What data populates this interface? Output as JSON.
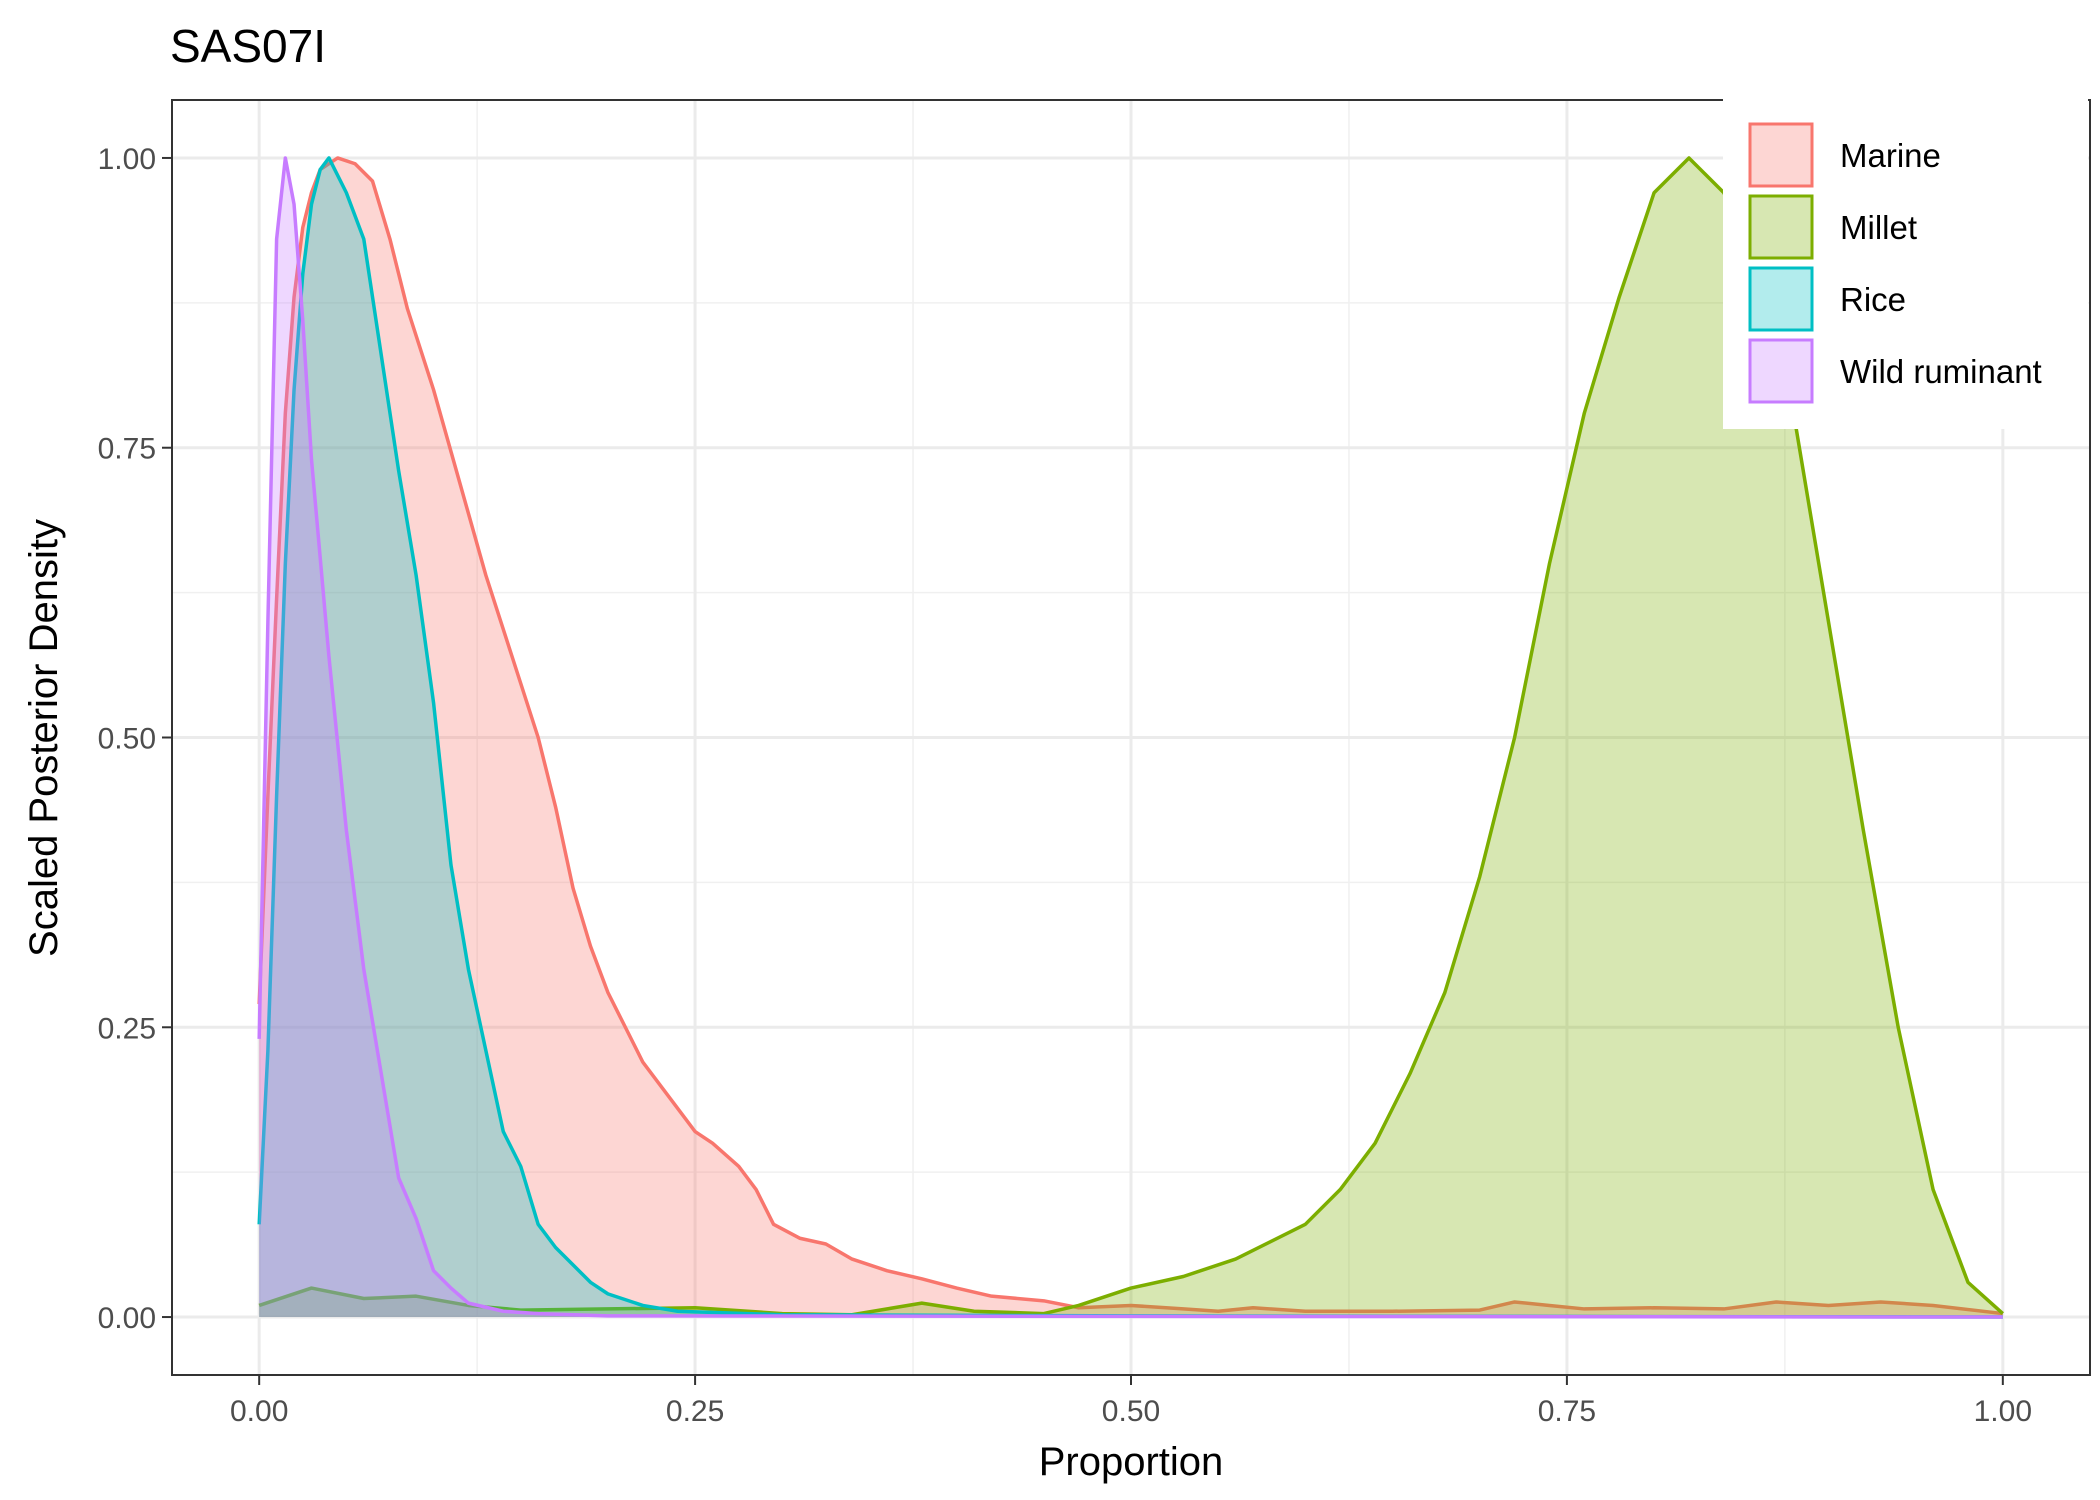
{
  "chart_data": {
    "type": "area",
    "title": "SAS07I",
    "xlabel": "Proportion",
    "ylabel": "Scaled Posterior Density",
    "xlim": [
      -0.05,
      1.05
    ],
    "ylim": [
      -0.05,
      1.05
    ],
    "x_ticks": [
      0,
      0.25,
      0.5,
      0.75,
      1
    ],
    "x_tick_labels": [
      "0.00",
      "0.25",
      "0.50",
      "0.75",
      "1.00"
    ],
    "y_ticks": [
      0,
      0.25,
      0.5,
      0.75,
      1
    ],
    "y_tick_labels": [
      "0.00",
      "0.25",
      "0.50",
      "0.75",
      "1.00"
    ],
    "grid": true,
    "legend_position": "top-right",
    "series": [
      {
        "name": "Marine",
        "color": "#F8766D",
        "points": [
          [
            0,
            0.27
          ],
          [
            0.005,
            0.45
          ],
          [
            0.01,
            0.62
          ],
          [
            0.015,
            0.78
          ],
          [
            0.02,
            0.88
          ],
          [
            0.025,
            0.94
          ],
          [
            0.03,
            0.97
          ],
          [
            0.035,
            0.99
          ],
          [
            0.045,
            1.0
          ],
          [
            0.055,
            0.995
          ],
          [
            0.065,
            0.98
          ],
          [
            0.075,
            0.93
          ],
          [
            0.085,
            0.87
          ],
          [
            0.1,
            0.8
          ],
          [
            0.115,
            0.72
          ],
          [
            0.13,
            0.64
          ],
          [
            0.145,
            0.57
          ],
          [
            0.16,
            0.5
          ],
          [
            0.17,
            0.44
          ],
          [
            0.18,
            0.37
          ],
          [
            0.19,
            0.32
          ],
          [
            0.2,
            0.28
          ],
          [
            0.21,
            0.25
          ],
          [
            0.22,
            0.22
          ],
          [
            0.235,
            0.19
          ],
          [
            0.25,
            0.16
          ],
          [
            0.26,
            0.15
          ],
          [
            0.275,
            0.13
          ],
          [
            0.285,
            0.11
          ],
          [
            0.295,
            0.08
          ],
          [
            0.31,
            0.068
          ],
          [
            0.325,
            0.063
          ],
          [
            0.34,
            0.05
          ],
          [
            0.36,
            0.04
          ],
          [
            0.38,
            0.033
          ],
          [
            0.4,
            0.025
          ],
          [
            0.42,
            0.018
          ],
          [
            0.45,
            0.014
          ],
          [
            0.47,
            0.008
          ],
          [
            0.5,
            0.01
          ],
          [
            0.53,
            0.007
          ],
          [
            0.55,
            0.005
          ],
          [
            0.57,
            0.008
          ],
          [
            0.6,
            0.005
          ],
          [
            0.65,
            0.005
          ],
          [
            0.7,
            0.006
          ],
          [
            0.72,
            0.013
          ],
          [
            0.74,
            0.01
          ],
          [
            0.76,
            0.007
          ],
          [
            0.8,
            0.008
          ],
          [
            0.84,
            0.007
          ],
          [
            0.87,
            0.013
          ],
          [
            0.9,
            0.01
          ],
          [
            0.93,
            0.013
          ],
          [
            0.96,
            0.01
          ],
          [
            1.0,
            0.003
          ]
        ]
      },
      {
        "name": "Millet",
        "color": "#7CAE00",
        "points": [
          [
            0,
            0.01
          ],
          [
            0.03,
            0.025
          ],
          [
            0.06,
            0.016
          ],
          [
            0.09,
            0.018
          ],
          [
            0.12,
            0.01
          ],
          [
            0.15,
            0.006
          ],
          [
            0.2,
            0.007
          ],
          [
            0.25,
            0.008
          ],
          [
            0.3,
            0.003
          ],
          [
            0.34,
            0.002
          ],
          [
            0.38,
            0.012
          ],
          [
            0.41,
            0.005
          ],
          [
            0.45,
            0.003
          ],
          [
            0.47,
            0.01
          ],
          [
            0.5,
            0.025
          ],
          [
            0.53,
            0.035
          ],
          [
            0.56,
            0.05
          ],
          [
            0.6,
            0.08
          ],
          [
            0.62,
            0.11
          ],
          [
            0.64,
            0.15
          ],
          [
            0.66,
            0.21
          ],
          [
            0.68,
            0.28
          ],
          [
            0.7,
            0.38
          ],
          [
            0.72,
            0.5
          ],
          [
            0.74,
            0.65
          ],
          [
            0.76,
            0.78
          ],
          [
            0.78,
            0.88
          ],
          [
            0.8,
            0.97
          ],
          [
            0.82,
            1.0
          ],
          [
            0.84,
            0.97
          ],
          [
            0.86,
            0.9
          ],
          [
            0.88,
            0.78
          ],
          [
            0.9,
            0.6
          ],
          [
            0.92,
            0.42
          ],
          [
            0.94,
            0.25
          ],
          [
            0.96,
            0.11
          ],
          [
            0.98,
            0.03
          ],
          [
            1.0,
            0.003
          ]
        ]
      },
      {
        "name": "Rice",
        "color": "#00BFC4",
        "points": [
          [
            0,
            0.08
          ],
          [
            0.005,
            0.23
          ],
          [
            0.01,
            0.45
          ],
          [
            0.015,
            0.65
          ],
          [
            0.02,
            0.8
          ],
          [
            0.025,
            0.9
          ],
          [
            0.03,
            0.96
          ],
          [
            0.035,
            0.99
          ],
          [
            0.04,
            1.0
          ],
          [
            0.05,
            0.97
          ],
          [
            0.06,
            0.93
          ],
          [
            0.07,
            0.83
          ],
          [
            0.08,
            0.73
          ],
          [
            0.09,
            0.64
          ],
          [
            0.1,
            0.53
          ],
          [
            0.11,
            0.39
          ],
          [
            0.12,
            0.3
          ],
          [
            0.13,
            0.23
          ],
          [
            0.14,
            0.16
          ],
          [
            0.15,
            0.13
          ],
          [
            0.16,
            0.08
          ],
          [
            0.17,
            0.06
          ],
          [
            0.18,
            0.045
          ],
          [
            0.19,
            0.03
          ],
          [
            0.2,
            0.02
          ],
          [
            0.22,
            0.01
          ],
          [
            0.24,
            0.005
          ],
          [
            0.3,
            0.002
          ],
          [
            0.5,
            0.001
          ],
          [
            1.0,
            0.0
          ]
        ]
      },
      {
        "name": "Wild ruminant",
        "color": "#C77CFF",
        "points": [
          [
            0,
            0.24
          ],
          [
            0.005,
            0.6
          ],
          [
            0.01,
            0.93
          ],
          [
            0.015,
            1.0
          ],
          [
            0.02,
            0.96
          ],
          [
            0.025,
            0.86
          ],
          [
            0.03,
            0.74
          ],
          [
            0.04,
            0.57
          ],
          [
            0.05,
            0.42
          ],
          [
            0.06,
            0.3
          ],
          [
            0.07,
            0.21
          ],
          [
            0.08,
            0.12
          ],
          [
            0.09,
            0.085
          ],
          [
            0.1,
            0.04
          ],
          [
            0.11,
            0.025
          ],
          [
            0.12,
            0.012
          ],
          [
            0.14,
            0.005
          ],
          [
            0.16,
            0.003
          ],
          [
            0.2,
            0.001
          ],
          [
            1.0,
            0.0
          ]
        ]
      }
    ]
  }
}
